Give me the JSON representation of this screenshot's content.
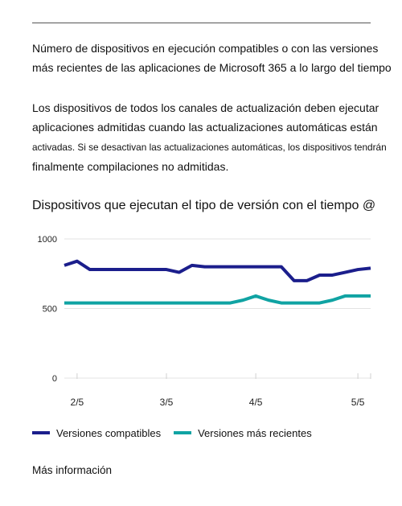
{
  "description": "Número de dispositivos en ejecución compatibles o con las versiones más recientes de las aplicaciones de Microsoft 365 a lo largo del tiempo",
  "info": {
    "part1": "Los dispositivos de todos los canales de actualización deben ejecutar aplicaciones admitidas cuando las actualizaciones automáticas están",
    "part2": "activadas. Si se desactivan las actualizaciones automáticas, los dispositivos tendrán",
    "part3": "finalmente compilaciones no admitidas."
  },
  "chart_title": "Dispositivos que ejecutan el tipo de versión con el tiempo @",
  "more_link": "Más información",
  "chart_data": {
    "type": "line",
    "x": [
      "2/1",
      "2/5",
      "2/9",
      "2/13",
      "2/17",
      "2/21",
      "2/25",
      "3/1",
      "3/5",
      "3/7",
      "3/10",
      "3/14",
      "3/18",
      "3/22",
      "4/1",
      "4/5",
      "4/9",
      "4/12",
      "4/15",
      "4/19",
      "4/23",
      "4/27",
      "5/1",
      "5/5",
      "5/8"
    ],
    "x_ticks": [
      "2/5",
      "3/5",
      "4/5",
      "5/5"
    ],
    "ylim": [
      0,
      1000
    ],
    "y_ticks": [
      0,
      500,
      1000
    ],
    "grid": true,
    "legend": "bottom-left",
    "series": [
      {
        "name": "Versiones compatibles",
        "color": "#1b1e8c",
        "values": [
          810,
          840,
          780,
          780,
          780,
          780,
          780,
          780,
          780,
          760,
          810,
          800,
          800,
          800,
          800,
          800,
          800,
          800,
          700,
          700,
          740,
          740,
          760,
          780,
          790
        ]
      },
      {
        "name": "Versiones más recientes",
        "color": "#10a3a3",
        "values": [
          540,
          540,
          540,
          540,
          540,
          540,
          540,
          540,
          540,
          540,
          540,
          540,
          540,
          540,
          560,
          590,
          560,
          540,
          540,
          540,
          540,
          560,
          590,
          590,
          590
        ]
      }
    ]
  }
}
